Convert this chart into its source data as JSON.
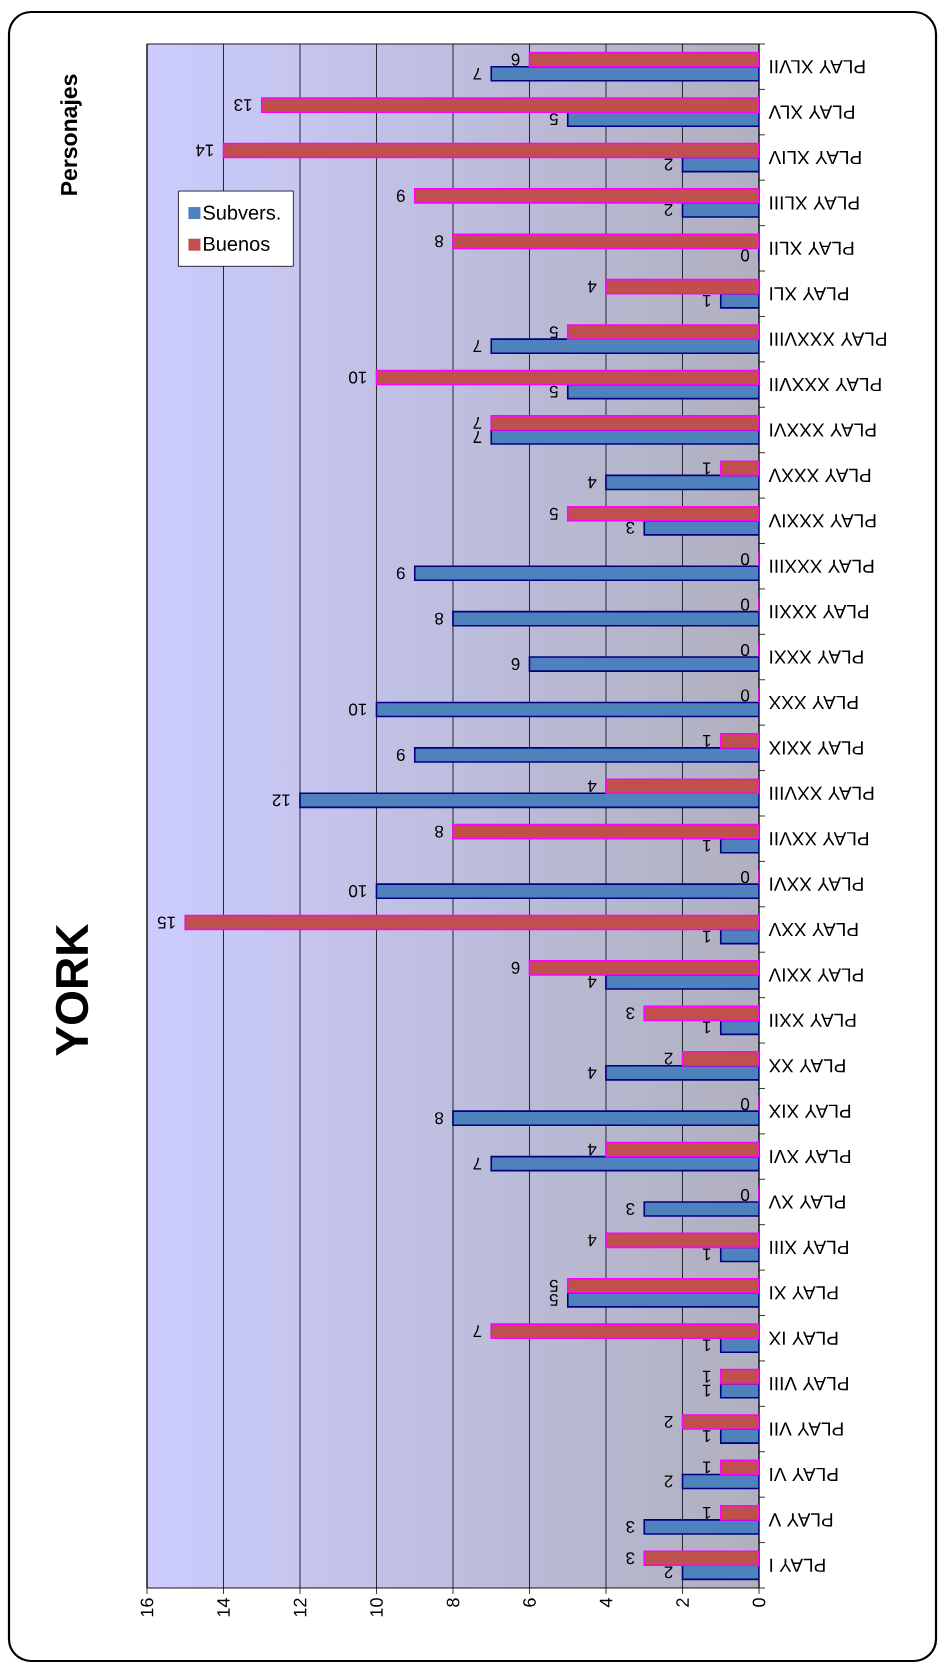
{
  "chart_data": {
    "type": "bar",
    "orientation": "horizontal",
    "title": "YORK",
    "subtitle": "Personajes",
    "categories": [
      "PLAY XLVII",
      "PLAY XLV",
      "PLAY XLIV",
      "PLAY XLIII",
      "PLAY XLII",
      "PLAY XLI",
      "PLAY XXXVIII",
      "PLAY XXXVII",
      "PLAY XXXVI",
      "PLAY XXXV",
      "PLAY XXXIV",
      "PLAY XXXIII",
      "PLAY XXXII",
      "PLAY XXXI",
      "PLAY XXX",
      "PLAY XXIX",
      "PLAY XXVIII",
      "PLAY XXVII",
      "PLAY XXVI",
      "PLAY XXV",
      "PLAY XXIV",
      "PLAY XXII",
      "PLAY XX",
      "PLAY XIX",
      "PLAY XVI",
      "PLAY XV",
      "PLAY XIII",
      "PLAY XI",
      "PLAY IX",
      "PLAY VIII",
      "PLAY VII",
      "PLAY VI",
      "PLAY V",
      "PLAY I"
    ],
    "series": [
      {
        "name": "Subvers.",
        "color": "#4f81bd",
        "values": [
          7,
          5,
          2,
          2,
          0,
          1,
          7,
          5,
          7,
          4,
          3,
          9,
          8,
          6,
          10,
          9,
          12,
          1,
          10,
          1,
          4,
          1,
          4,
          8,
          7,
          3,
          1,
          5,
          1,
          1,
          1,
          2,
          3,
          2
        ]
      },
      {
        "name": "Buenos",
        "color": "#c0504d",
        "values": [
          6,
          13,
          14,
          9,
          8,
          4,
          5,
          10,
          7,
          1,
          5,
          0,
          0,
          0,
          0,
          1,
          4,
          8,
          0,
          15,
          6,
          3,
          2,
          0,
          4,
          0,
          4,
          5,
          7,
          1,
          2,
          1,
          1,
          3
        ]
      }
    ],
    "xlim": [
      16,
      0
    ],
    "xticks": [
      0,
      2,
      4,
      6,
      8,
      10,
      12,
      14,
      16
    ],
    "grid": "x",
    "legend": "top left",
    "data_labels": true
  }
}
